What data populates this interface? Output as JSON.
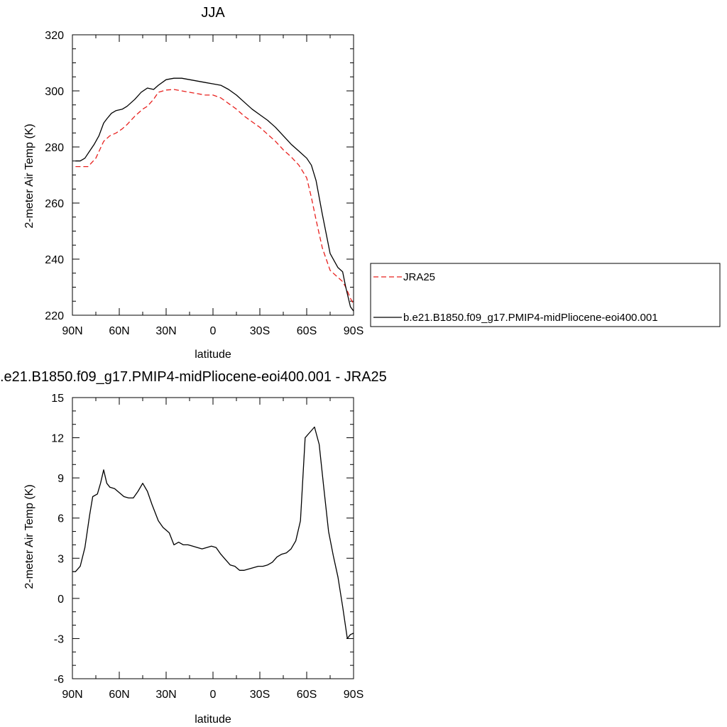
{
  "chart_data": [
    {
      "type": "line",
      "title": "JJA",
      "xlabel": "latitude",
      "ylabel": "2-meter Air Temp (K)",
      "xlim": [
        90,
        -90
      ],
      "ylim": [
        220,
        320
      ],
      "x_tick_values": [
        90,
        60,
        30,
        0,
        -30,
        -60,
        -90
      ],
      "x_tick_labels": [
        "90N",
        "60N",
        "30N",
        "0",
        "30S",
        "60S",
        "90S"
      ],
      "y_tick_values": [
        220,
        240,
        260,
        280,
        300,
        320
      ],
      "y_tick_labels": [
        "220",
        "240",
        "260",
        "280",
        "300",
        "320"
      ],
      "legend_position": "right",
      "series": [
        {
          "name": "JRA25",
          "color": "#e8211e",
          "dash": "dashed",
          "x": [
            88,
            85,
            80,
            75,
            70,
            66,
            62,
            58,
            55,
            50,
            45,
            42,
            38,
            35,
            30,
            25,
            20,
            15,
            10,
            5,
            0,
            -5,
            -10,
            -15,
            -20,
            -25,
            -30,
            -35,
            -40,
            -45,
            -50,
            -55,
            -60,
            -63,
            -66,
            -70,
            -75,
            -80,
            -83,
            -85,
            -88,
            -90
          ],
          "y": [
            273,
            273,
            273,
            276,
            282,
            284,
            285,
            286.5,
            288,
            291,
            293.5,
            294.5,
            297,
            299.5,
            300.3,
            300.5,
            300,
            299.5,
            299,
            298.5,
            298.5,
            297.5,
            295.5,
            293.5,
            291,
            289,
            287,
            284.5,
            282,
            279,
            276.5,
            273.5,
            269,
            262,
            254,
            244,
            236,
            233.5,
            232,
            230,
            226,
            224
          ]
        },
        {
          "name": "b.e21.B1850.f09_g17.PMIP4-midPliocene-eoi400.001",
          "color": "#000000",
          "dash": "solid",
          "x": [
            88,
            85,
            82,
            79,
            76,
            73,
            70,
            68,
            65,
            62,
            58,
            55,
            50,
            46,
            42,
            38,
            35,
            30,
            25,
            20,
            15,
            10,
            5,
            0,
            -5,
            -10,
            -15,
            -20,
            -25,
            -30,
            -35,
            -40,
            -45,
            -50,
            -55,
            -60,
            -63,
            -66,
            -70,
            -75,
            -80,
            -83,
            -85,
            -88,
            -90
          ],
          "y": [
            275,
            275,
            276,
            278.5,
            281,
            284,
            288.5,
            290,
            292,
            293,
            293.5,
            294.5,
            297,
            299.5,
            301,
            300.5,
            302,
            304,
            304.5,
            304.5,
            304,
            303.5,
            303,
            302.5,
            302,
            300.5,
            298.5,
            296,
            293.5,
            291.5,
            289.5,
            287,
            284,
            281,
            278.5,
            276,
            273.5,
            268,
            256,
            242,
            237,
            235.5,
            230,
            223,
            221.5
          ]
        }
      ]
    },
    {
      "type": "line",
      "title": ".e21.B1850.f09_g17.PMIP4-midPliocene-eoi400.001 - JRA25",
      "xlabel": "latitude",
      "ylabel": "2-meter Air Temp (K)",
      "xlim": [
        90,
        -90
      ],
      "ylim": [
        -6,
        15
      ],
      "x_tick_values": [
        90,
        60,
        30,
        0,
        -30,
        -60,
        -90
      ],
      "x_tick_labels": [
        "90N",
        "60N",
        "30N",
        "0",
        "30S",
        "60S",
        "90S"
      ],
      "y_tick_values": [
        -6,
        -3,
        0,
        3,
        6,
        9,
        12,
        15
      ],
      "y_tick_labels": [
        "-6",
        "-3",
        "0",
        "3",
        "6",
        "9",
        "12",
        "15"
      ],
      "series": [
        {
          "color": "#000000",
          "dash": "solid",
          "x": [
            90,
            88,
            85,
            82,
            79,
            77,
            74,
            72,
            70,
            68,
            66,
            63,
            60,
            57,
            54,
            51,
            48,
            45,
            42,
            39,
            35,
            32,
            28,
            25,
            22,
            19,
            16,
            13,
            10,
            7,
            4,
            1,
            -2,
            -5,
            -8,
            -11,
            -14,
            -17,
            -20,
            -23,
            -26,
            -29,
            -32,
            -35,
            -38,
            -41,
            -44,
            -47,
            -50,
            -53,
            -56,
            -59,
            -62,
            -65,
            -68,
            -71,
            -74,
            -77,
            -80,
            -83,
            -86,
            -88,
            -90
          ],
          "y": [
            2.0,
            2.0,
            2.4,
            3.8,
            6.2,
            7.6,
            7.8,
            8.6,
            9.6,
            8.6,
            8.3,
            8.2,
            7.9,
            7.6,
            7.5,
            7.5,
            8.0,
            8.6,
            8.0,
            7.0,
            5.8,
            5.3,
            4.9,
            4.0,
            4.2,
            4.0,
            4.0,
            3.9,
            3.8,
            3.7,
            3.8,
            3.9,
            3.8,
            3.3,
            2.9,
            2.5,
            2.4,
            2.1,
            2.1,
            2.2,
            2.3,
            2.4,
            2.4,
            2.5,
            2.7,
            3.1,
            3.3,
            3.4,
            3.7,
            4.3,
            5.8,
            12.0,
            12.4,
            12.8,
            11.5,
            8.2,
            5.0,
            3.2,
            1.6,
            -0.6,
            -3.0,
            -2.7,
            -2.6
          ]
        }
      ]
    }
  ]
}
